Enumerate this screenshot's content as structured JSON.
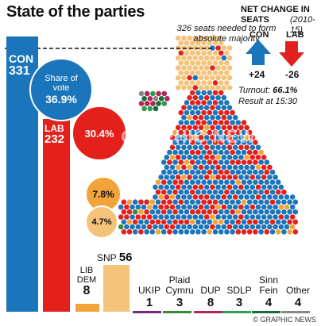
{
  "title": "State of the parties",
  "majority_note": "326 seats needed to form absolute majority",
  "net_change": {
    "heading": "NET CHANGE IN SEATS",
    "period": "(2010-15)",
    "items": [
      {
        "party": "CON",
        "change": "+24",
        "direction": "up",
        "color": "#1b75bb"
      },
      {
        "party": "LAB",
        "change": "-26",
        "direction": "down",
        "color": "#e3201b"
      }
    ]
  },
  "turnout_label": "Turnout:",
  "turnout_value": "66.1%",
  "result_time": "Result at 15:30",
  "credit": "© GRAPHIC NEWS",
  "watermark": "GRAPHIC NEWS",
  "colors": {
    "con": "#1b75bb",
    "lab": "#e3201b",
    "ld": "#f2a33a",
    "snp": "#f5c27a",
    "ukip": "#7a2a7e",
    "pc": "#3a8a3a",
    "dup": "#b0285a",
    "sdlp": "#2e9e4f",
    "sf": "#1a6b3a",
    "other": "#888888"
  },
  "chart_data": {
    "type": "bar",
    "title": "State of the parties",
    "majority_line": 326,
    "main_parties": [
      {
        "party": "CON",
        "seats": 331,
        "share_label": "Share of vote",
        "share": "36.9%"
      },
      {
        "party": "LAB",
        "seats": 232,
        "share": "30.4%"
      },
      {
        "party": "LIB DEM",
        "seats": 8,
        "share": "7.8%"
      },
      {
        "party": "SNP",
        "seats": 56,
        "share": "4.7%"
      }
    ],
    "other_parties": [
      {
        "party": "UKIP",
        "seats": 1
      },
      {
        "party": "Plaid Cymru",
        "seats": 3
      },
      {
        "party": "DUP",
        "seats": 8
      },
      {
        "party": "SDLP",
        "seats": 3
      },
      {
        "party": "Sinn Fein",
        "seats": 4
      },
      {
        "party": "Other",
        "seats": 4
      }
    ]
  }
}
